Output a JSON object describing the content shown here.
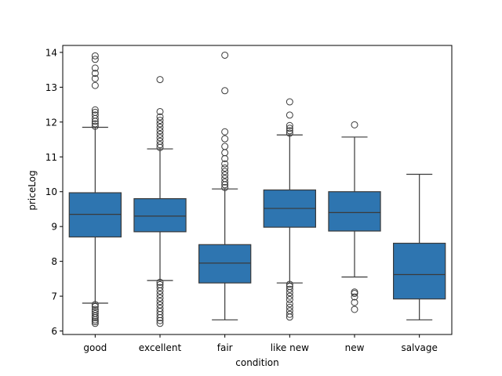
{
  "chart_data": {
    "type": "box",
    "xlabel": "condition",
    "ylabel": "priceLog",
    "ylim": [
      5.9,
      14.2
    ],
    "yticks": [
      6,
      7,
      8,
      9,
      10,
      11,
      12,
      13,
      14
    ],
    "ytick_labels": [
      "6",
      "7",
      "8",
      "9",
      "10",
      "11",
      "12",
      "13",
      "14"
    ],
    "grid": false,
    "box_color": "#2e75b0",
    "line_color": "#3a3a3a",
    "categories": [
      "good",
      "excellent",
      "fair",
      "like new",
      "new",
      "salvage"
    ],
    "boxes": [
      {
        "category": "good",
        "whisker_low": 6.8,
        "q1": 8.7,
        "median": 9.35,
        "q3": 9.97,
        "whisker_high": 11.85,
        "outliers": [
          6.22,
          6.27,
          6.32,
          6.38,
          6.43,
          6.5,
          6.56,
          6.62,
          6.7,
          6.76,
          11.88,
          11.95,
          12.02,
          12.1,
          12.2,
          12.28,
          12.35,
          13.05,
          13.25,
          13.4,
          13.55,
          13.8,
          13.9
        ]
      },
      {
        "category": "excellent",
        "whisker_low": 7.45,
        "q1": 8.85,
        "median": 9.3,
        "q3": 9.8,
        "whisker_high": 11.23,
        "outliers": [
          6.22,
          6.3,
          6.38,
          6.47,
          6.56,
          6.65,
          6.75,
          6.85,
          6.95,
          7.05,
          7.15,
          7.25,
          7.33,
          7.4,
          11.27,
          11.35,
          11.45,
          11.55,
          11.65,
          11.75,
          11.85,
          11.95,
          12.05,
          12.15,
          12.3,
          13.22
        ]
      },
      {
        "category": "fair",
        "whisker_low": 6.32,
        "q1": 7.38,
        "median": 7.95,
        "q3": 8.48,
        "whisker_high": 10.08,
        "outliers": [
          10.12,
          10.2,
          10.28,
          10.38,
          10.48,
          10.58,
          10.68,
          10.8,
          10.95,
          11.12,
          11.3,
          11.52,
          11.72,
          12.9,
          13.92
        ]
      },
      {
        "category": "like new",
        "whisker_low": 7.38,
        "q1": 8.98,
        "median": 9.52,
        "q3": 10.05,
        "whisker_high": 11.63,
        "outliers": [
          6.4,
          6.48,
          6.58,
          6.68,
          6.78,
          6.9,
          7.0,
          7.1,
          7.2,
          7.28,
          7.34,
          11.68,
          11.75,
          11.82,
          11.9,
          12.2,
          12.58
        ]
      },
      {
        "category": "new",
        "whisker_low": 7.55,
        "q1": 8.87,
        "median": 9.4,
        "q3": 10.0,
        "whisker_high": 11.57,
        "outliers": [
          6.62,
          6.82,
          6.98,
          7.08,
          7.12,
          11.92
        ]
      },
      {
        "category": "salvage",
        "whisker_low": 6.32,
        "q1": 6.92,
        "median": 7.62,
        "q3": 8.52,
        "whisker_high": 10.5,
        "outliers": []
      }
    ]
  }
}
